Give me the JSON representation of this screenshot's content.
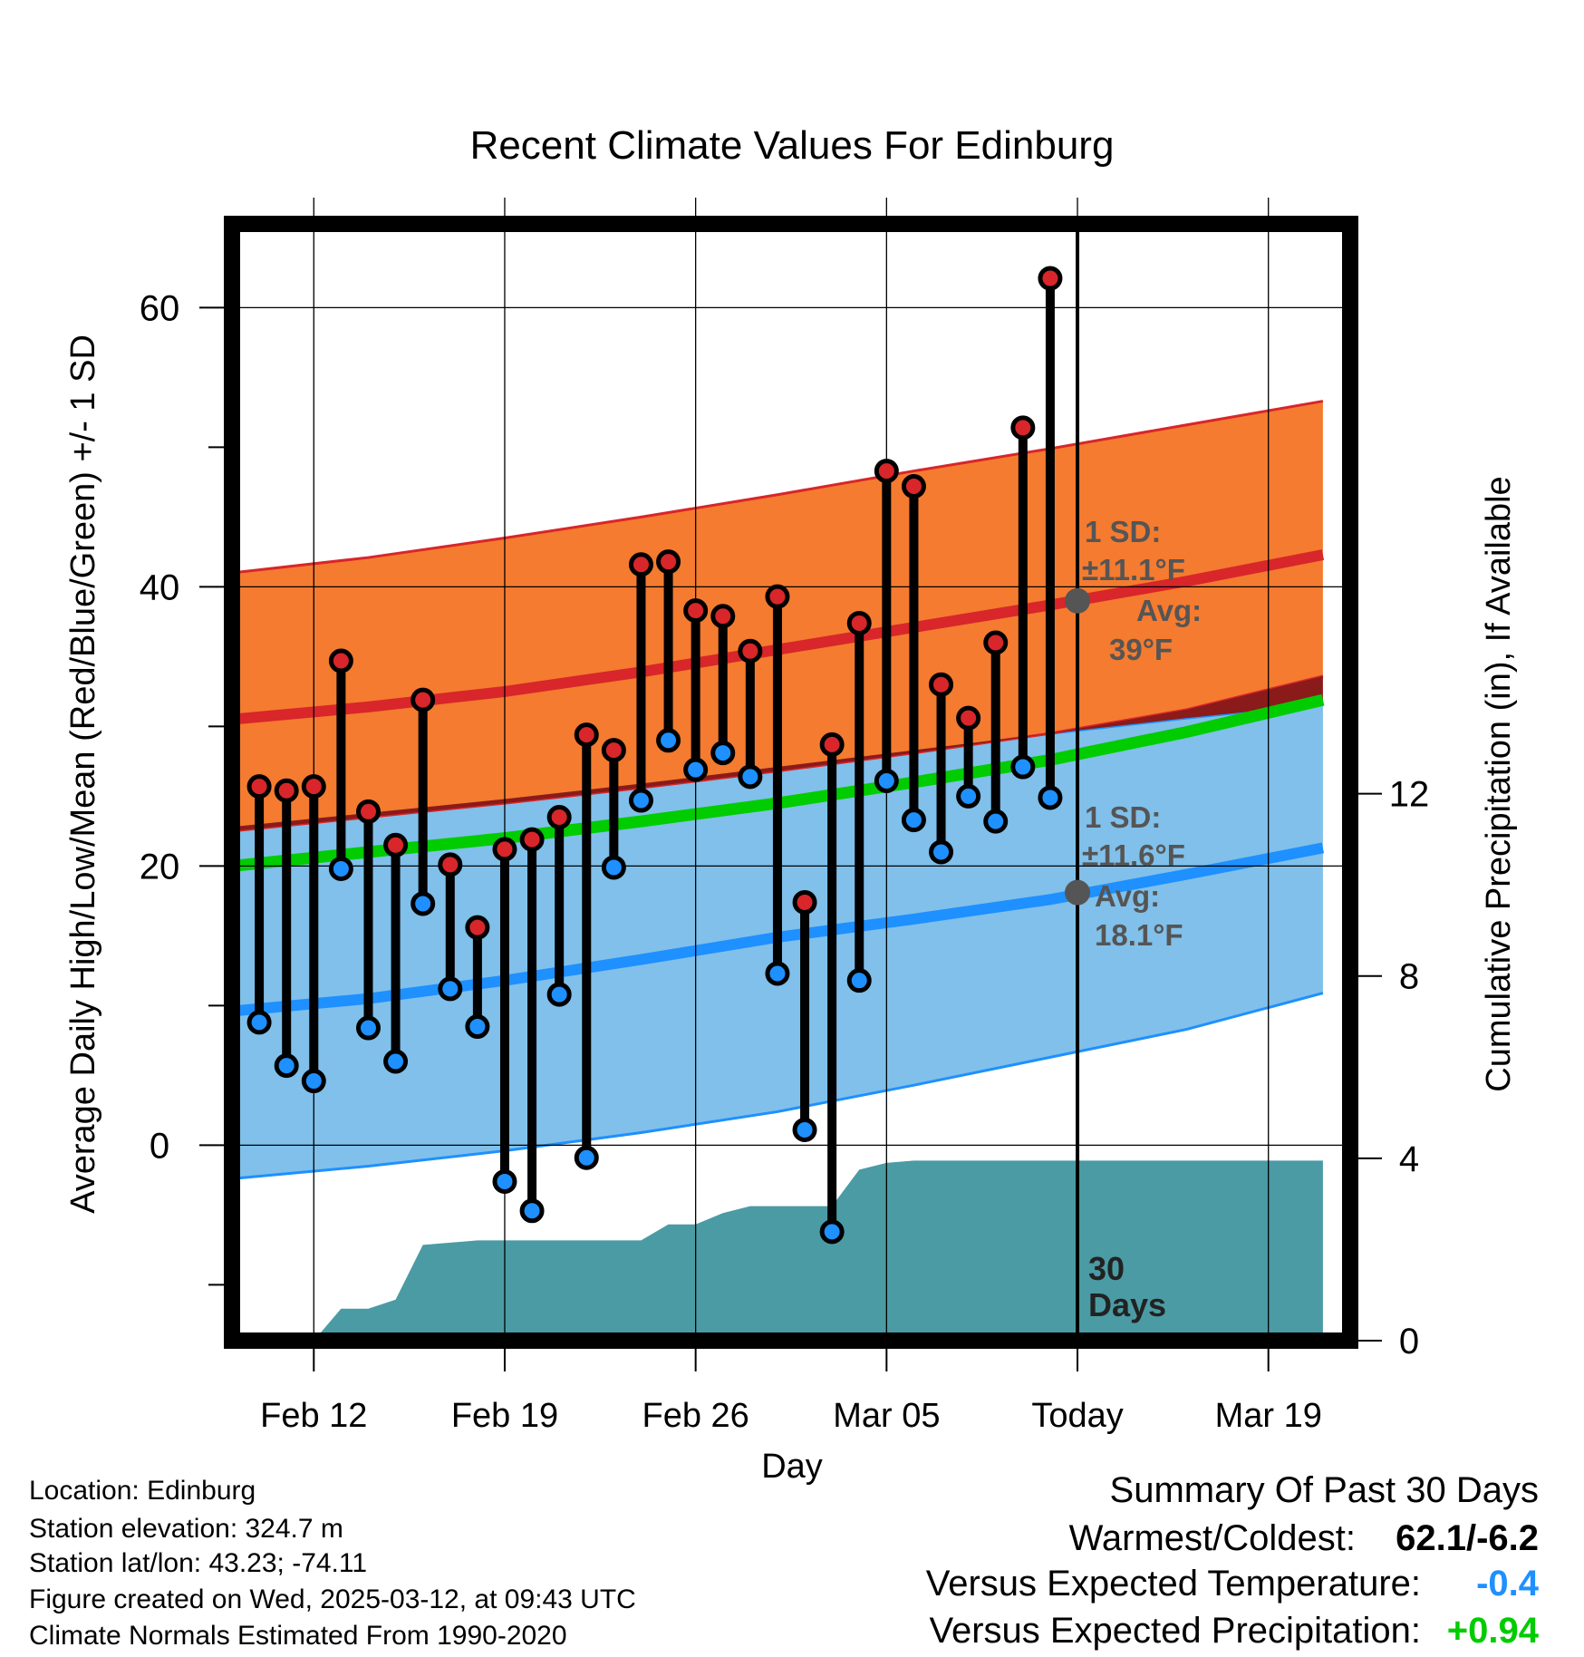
{
  "title": "Recent Climate Values For Edinburg",
  "colors": {
    "high": "#d8262a",
    "low": "#1e90ff",
    "mean": "#00cc00",
    "high_band": "#f47b2f",
    "low_band": "#80c0ea",
    "precip": "#4a9ba4",
    "marker_today": "#555555"
  },
  "chart_data": {
    "type": "line",
    "title": "Recent Climate Values For Edinburg",
    "xlabel": "Day",
    "ylabel": "Average Daily High/Low/Mean (Red/Blue/Green) +/- 1 SD",
    "y2label": "Cumulative Precipitation (in), If Available",
    "x_tick_labels": [
      "Feb 12",
      "Feb 19",
      "Feb 26",
      "Mar 05",
      "Today",
      "Mar 19"
    ],
    "x_tick_dates": [
      "2025-02-12",
      "2025-02-19",
      "2025-02-26",
      "2025-03-05",
      "2025-03-12",
      "2025-03-19"
    ],
    "xlim": [
      "2025-02-09",
      "2025-03-22"
    ],
    "ylim": [
      -14,
      66
    ],
    "y_ticks": [
      0,
      20,
      40,
      60
    ],
    "y2lim": [
      0,
      24.5
    ],
    "y2_ticks": [
      0,
      4,
      8,
      12
    ],
    "grid": true,
    "today": "2025-03-12",
    "today_label": "30\nDays",
    "observed": {
      "dates": [
        "2025-02-10",
        "2025-02-11",
        "2025-02-12",
        "2025-02-13",
        "2025-02-14",
        "2025-02-15",
        "2025-02-16",
        "2025-02-17",
        "2025-02-18",
        "2025-02-19",
        "2025-02-20",
        "2025-02-21",
        "2025-02-22",
        "2025-02-23",
        "2025-02-24",
        "2025-02-25",
        "2025-02-26",
        "2025-02-27",
        "2025-02-28",
        "2025-03-01",
        "2025-03-02",
        "2025-03-03",
        "2025-03-04",
        "2025-03-05",
        "2025-03-06",
        "2025-03-07",
        "2025-03-08",
        "2025-03-09",
        "2025-03-10",
        "2025-03-11"
      ],
      "high": [
        25.7,
        25.4,
        25.7,
        34.7,
        23.9,
        21.5,
        31.9,
        20.1,
        15.6,
        21.2,
        21.9,
        23.5,
        29.4,
        28.3,
        41.6,
        41.8,
        38.3,
        37.9,
        35.4,
        39.3,
        17.4,
        28.7,
        37.4,
        48.3,
        47.2,
        33.0,
        30.6,
        36.0,
        51.4,
        62.1
      ],
      "low": [
        8.8,
        5.7,
        4.6,
        19.8,
        8.4,
        6.0,
        17.3,
        11.2,
        8.5,
        -2.6,
        -4.7,
        10.8,
        -0.9,
        19.9,
        24.7,
        29.0,
        26.9,
        28.1,
        26.4,
        12.3,
        1.1,
        -6.2,
        11.8,
        26.1,
        23.3,
        21.0,
        25.0,
        23.2,
        27.1,
        24.9
      ]
    },
    "normals": {
      "dates": [
        "2025-02-09",
        "2025-02-14",
        "2025-02-19",
        "2025-02-24",
        "2025-03-01",
        "2025-03-06",
        "2025-03-11",
        "2025-03-16",
        "2025-03-21"
      ],
      "high": [
        30.5,
        31.4,
        32.5,
        33.9,
        35.5,
        37.1,
        38.7,
        40.4,
        42.3
      ],
      "high_upper": [
        41.0,
        42.1,
        43.5,
        45.0,
        46.6,
        48.3,
        49.9,
        51.6,
        53.3
      ],
      "high_lower": [
        22.5,
        23.5,
        24.5,
        25.6,
        26.8,
        28.1,
        29.5,
        31.2,
        33.6
      ],
      "low": [
        9.6,
        10.5,
        11.8,
        13.3,
        14.9,
        16.2,
        17.6,
        19.4,
        21.3
      ],
      "low_upper": [
        22.8,
        23.8,
        24.8,
        25.9,
        27.1,
        28.3,
        29.5,
        30.6,
        31.6
      ],
      "low_lower": [
        -2.4,
        -1.5,
        -0.4,
        0.9,
        2.4,
        4.3,
        6.3,
        8.3,
        10.9
      ],
      "mean": [
        20.0,
        21.0,
        22.0,
        23.2,
        24.5,
        26.0,
        27.6,
        29.6,
        31.9
      ]
    },
    "precip_cumulative": {
      "dates": [
        "2025-02-12",
        "2025-02-13",
        "2025-02-14",
        "2025-02-15",
        "2025-02-16",
        "2025-02-17",
        "2025-02-18",
        "2025-02-24",
        "2025-02-25",
        "2025-02-26",
        "2025-02-27",
        "2025-02-28",
        "2025-03-03",
        "2025-03-04",
        "2025-03-05",
        "2025-03-06",
        "2025-03-21"
      ],
      "values": [
        0.0,
        0.7,
        0.7,
        0.9,
        2.1,
        2.15,
        2.2,
        2.2,
        2.55,
        2.55,
        2.8,
        2.95,
        2.95,
        3.75,
        3.9,
        3.95,
        3.95
      ]
    },
    "annotations": {
      "high_sd_line1": "1 SD:",
      "high_sd_line2": "±11.1°F",
      "high_avg_line1": "Avg:",
      "high_avg_line2": "39°F",
      "high_avg_value": 39,
      "low_sd_line1": "1 SD:",
      "low_sd_line2": "±11.6°F",
      "low_avg_line1": "Avg:",
      "low_avg_line2": "18.1°F",
      "low_avg_value": 18.1
    }
  },
  "footer_left": {
    "location": "Location: Edinburg",
    "elevation": "Station elevation: 324.7 m",
    "latlon": "Station lat/lon: 43.23; -74.11",
    "created": "Figure created on Wed, 2025-03-12, at 09:43 UTC",
    "normals": "Climate Normals Estimated From 1990-2020"
  },
  "summary": {
    "heading": "Summary Of Past 30 Days",
    "warmest_label": "Warmest/Coldest:",
    "warmest_value": "62.1/-6.2",
    "temp_label": "Versus Expected Temperature:",
    "temp_value": "-0.4",
    "precip_label": "Versus Expected Precipitation:",
    "precip_value": "+0.94"
  }
}
